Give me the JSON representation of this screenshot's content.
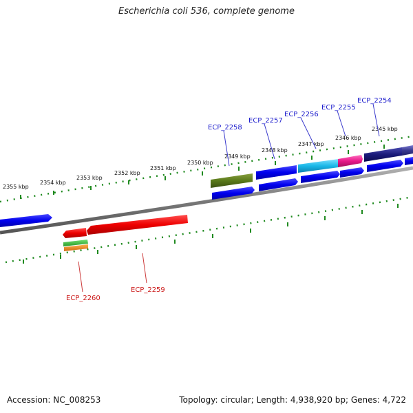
{
  "title": "Escherichia coli 536, complete genome",
  "footer": {
    "accession": "Accession: NC_008253",
    "summary": "Topology: circular; Length: 4,938,920 bp; Genes: 4,722"
  },
  "colors": {
    "backbone": "#888888",
    "ticks": "#1f8a1f",
    "forward_label": "#1a1acc",
    "reverse_label": "#cc1a1a"
  },
  "position_labels": [
    "2355 kbp",
    "2354 kbp",
    "2353 kbp",
    "2352 kbp",
    "2351 kbp",
    "2350 kbp",
    "2349 kbp",
    "2348 kbp",
    "2347 kbp",
    "2346 kbp",
    "2345 kbp"
  ],
  "gene_labels": {
    "top": [
      "ECP_2258",
      "ECP_2257",
      "ECP_2256",
      "ECP_2255",
      "ECP_2254"
    ],
    "bottom": [
      "ECP_2260",
      "ECP_2259"
    ]
  },
  "feature_colors": [
    "#0000ee",
    "#ee0000",
    "#5a7a1a",
    "#1ab8e8",
    "#e8188a",
    "#1a1a7a",
    "#3a9a3a",
    "#e87a1a"
  ]
}
